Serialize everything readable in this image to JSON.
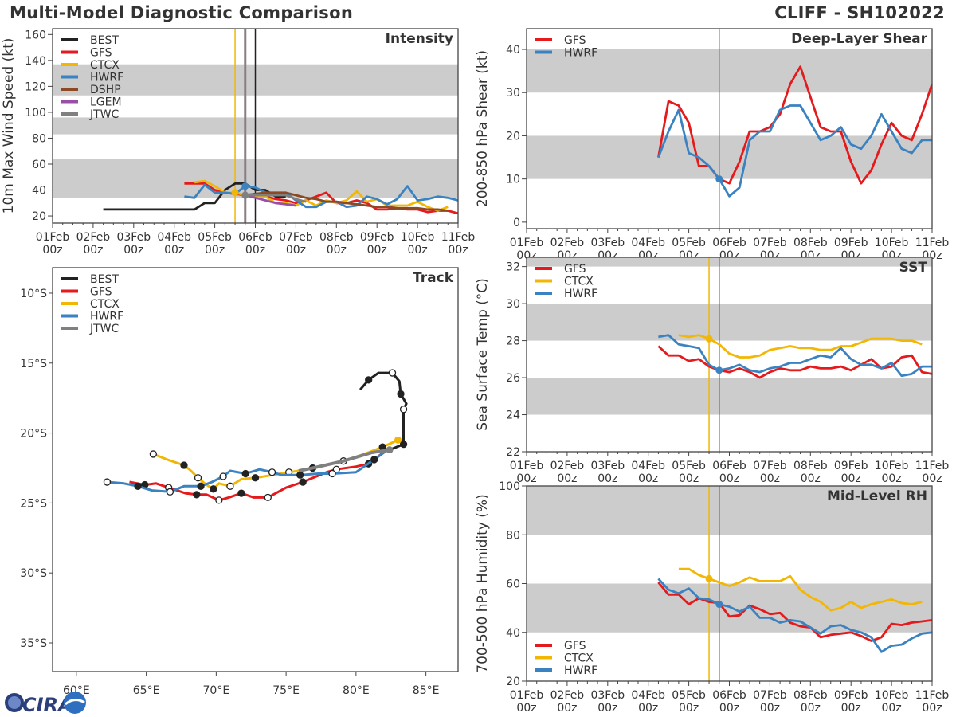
{
  "header": {
    "title": "Multi-Model Diagnostic Comparison",
    "storm": "CLIFF - SH102022"
  },
  "logo": {
    "text": "CIRA"
  },
  "colors": {
    "BEST": "#222222",
    "GFS": "#e41a1c",
    "CTCX": "#f2b705",
    "HWRF": "#3a82c0",
    "DSHP": "#8c4a24",
    "LGEM": "#9b4ea8",
    "JTWC": "#808080",
    "band": "#cccccc"
  },
  "chart_data": [
    {
      "id": "intensity",
      "type": "line",
      "title": "Intensity",
      "ylabel": "10m Max Wind Speed (kt)",
      "ylim": [
        14.5,
        164.5
      ],
      "yticks": [
        20,
        40,
        60,
        80,
        100,
        120,
        140,
        160
      ],
      "xlim": [
        "2022-02-01T00",
        "2022-02-11T00"
      ],
      "xticks": [
        "01Feb\n00z",
        "02Feb\n00z",
        "03Feb\n00z",
        "04Feb\n00z",
        "05Feb\n00z",
        "06Feb\n00z",
        "07Feb\n00z",
        "08Feb\n00z",
        "09Feb\n00z",
        "10Feb\n00z",
        "11Feb\n00z"
      ],
      "bands": [
        [
          34,
          64
        ],
        [
          83,
          96
        ],
        [
          113,
          137
        ]
      ],
      "legend": "top-left",
      "vlines": [
        {
          "time": "2022-02-05T12",
          "color": "#f2b705"
        },
        {
          "time": "2022-02-05T18",
          "color": "#8a7f80"
        },
        {
          "time": "2022-02-06T00",
          "color": "#222222"
        }
      ],
      "interval_hours": 6,
      "series": [
        {
          "name": "BEST",
          "start": "2022-02-02T06",
          "values": [
            25,
            25,
            25,
            25,
            25,
            25,
            25,
            25,
            25,
            25,
            30,
            30,
            40,
            45,
            45,
            40,
            40,
            35,
            35
          ]
        },
        {
          "name": "GFS",
          "start": "2022-02-04T06",
          "values": [
            45,
            45,
            45,
            40,
            38,
            37,
            36,
            37,
            35,
            33,
            32,
            30,
            32,
            35,
            38,
            30,
            30,
            32,
            30,
            25,
            25,
            26,
            25,
            25,
            23,
            24,
            24,
            22
          ]
        },
        {
          "name": "CTCX",
          "start": "2022-02-04T12",
          "values": [
            46,
            47,
            43,
            38,
            38,
            36,
            35,
            35,
            30,
            30,
            28,
            32,
            28,
            32,
            30,
            32,
            39,
            31,
            33,
            28,
            28,
            28,
            31,
            27,
            24,
            27
          ]
        },
        {
          "name": "HWRF",
          "start": "2022-02-04T06",
          "values": [
            35,
            34,
            44,
            38,
            38,
            37,
            43,
            42,
            38,
            36,
            38,
            32,
            27,
            27,
            31,
            31,
            27,
            28,
            35,
            33,
            29,
            33,
            43,
            32,
            33,
            35,
            34,
            32
          ]
        },
        {
          "name": "DSHP",
          "start": "2022-02-05T18",
          "values": [
            36,
            37,
            38,
            38,
            38,
            36,
            34,
            33,
            31,
            31,
            30,
            29,
            28,
            27,
            27,
            26,
            26,
            26,
            25,
            25,
            24
          ]
        },
        {
          "name": "LGEM",
          "start": "2022-02-05T18",
          "values": [
            36,
            34,
            32,
            30,
            29,
            28
          ]
        },
        {
          "name": "JTWC",
          "start": "2022-02-05T18",
          "values": [
            36,
            36,
            36,
            36,
            36,
            33,
            31
          ]
        }
      ],
      "markers": [
        {
          "series": "CTCX",
          "time": "2022-02-05T12",
          "value": 38
        },
        {
          "series": "HWRF",
          "time": "2022-02-05T18",
          "value": 43
        },
        {
          "series": "JTWC",
          "time": "2022-02-05T18",
          "value": 36
        }
      ]
    },
    {
      "id": "shear",
      "type": "line",
      "title": "Deep-Layer Shear",
      "ylabel": "200-850 hPa Shear (kt)",
      "ylim": [
        -1.5,
        44.8
      ],
      "yticks": [
        0,
        10,
        20,
        30,
        40
      ],
      "xlim": [
        "2022-02-01T00",
        "2022-02-11T00"
      ],
      "xticks": [
        "01Feb\n00z",
        "02Feb\n00z",
        "03Feb\n00z",
        "04Feb\n00z",
        "05Feb\n00z",
        "06Feb\n00z",
        "07Feb\n00z",
        "08Feb\n00z",
        "09Feb\n00z",
        "10Feb\n00z",
        "11Feb\n00z"
      ],
      "bands": [
        [
          10,
          20
        ],
        [
          30,
          40
        ]
      ],
      "legend": "top-left",
      "vlines": [
        {
          "time": "2022-02-05T18",
          "color": "#8a6a85"
        }
      ],
      "interval_hours": 6,
      "series": [
        {
          "name": "GFS",
          "start": "2022-02-04T06",
          "values": [
            15,
            28,
            27,
            23,
            13,
            13,
            10,
            9,
            14,
            21,
            21,
            22,
            25,
            32,
            36,
            29,
            22,
            21,
            21,
            14,
            9,
            12,
            18,
            23,
            20,
            19,
            25,
            32
          ]
        },
        {
          "name": "HWRF",
          "start": "2022-02-04T06",
          "values": [
            15,
            21,
            26,
            16,
            15,
            13,
            10,
            6,
            8,
            19,
            21,
            21,
            26,
            27,
            27,
            23,
            19,
            20,
            22,
            18,
            17,
            20,
            25,
            21,
            17,
            16,
            19,
            19
          ]
        }
      ],
      "markers": [
        {
          "series": "HWRF",
          "time": "2022-02-05T18",
          "value": 10
        }
      ]
    },
    {
      "id": "sst",
      "type": "line",
      "title": "SST",
      "ylabel": "Sea Surface Temp (°C)",
      "ylim": [
        22,
        32.5
      ],
      "yticks": [
        22,
        24,
        26,
        28,
        30,
        32
      ],
      "xlim": [
        "2022-02-01T00",
        "2022-02-11T00"
      ],
      "xticks": [
        "01Feb\n00z",
        "02Feb\n00z",
        "03Feb\n00z",
        "04Feb\n00z",
        "05Feb\n00z",
        "06Feb\n00z",
        "07Feb\n00z",
        "08Feb\n00z",
        "09Feb\n00z",
        "10Feb\n00z",
        "11Feb\n00z"
      ],
      "bands": [
        [
          24,
          26
        ],
        [
          28,
          30
        ],
        [
          32,
          32.5
        ]
      ],
      "legend": "top-left",
      "vlines": [
        {
          "time": "2022-02-05T12",
          "color": "#f2b705"
        },
        {
          "time": "2022-02-05T18",
          "color": "#3a6ea8"
        }
      ],
      "interval_hours": 6,
      "series": [
        {
          "name": "GFS",
          "start": "2022-02-04T06",
          "values": [
            27.7,
            27.2,
            27.2,
            26.9,
            27.0,
            26.6,
            26.4,
            26.3,
            26.5,
            26.3,
            26.0,
            26.3,
            26.5,
            26.4,
            26.4,
            26.6,
            26.5,
            26.5,
            26.6,
            26.4,
            26.7,
            27.0,
            26.5,
            26.6,
            27.1,
            27.2,
            26.3,
            26.2
          ]
        },
        {
          "name": "CTCX",
          "start": "2022-02-04T18",
          "values": [
            28.3,
            28.2,
            28.3,
            28.1,
            27.8,
            27.3,
            27.1,
            27.1,
            27.2,
            27.5,
            27.6,
            27.7,
            27.6,
            27.6,
            27.5,
            27.5,
            27.7,
            27.7,
            27.9,
            28.1,
            28.1,
            28.1,
            28.0,
            28.0,
            27.8
          ]
        },
        {
          "name": "HWRF",
          "start": "2022-02-04T06",
          "values": [
            28.2,
            28.3,
            27.8,
            27.7,
            27.6,
            26.7,
            26.4,
            26.5,
            26.7,
            26.4,
            26.3,
            26.5,
            26.6,
            26.8,
            26.8,
            27.0,
            27.2,
            27.1,
            27.6,
            27.0,
            26.7,
            26.7,
            26.5,
            26.8,
            26.1,
            26.2,
            26.6,
            26.6
          ]
        }
      ],
      "markers": [
        {
          "series": "CTCX",
          "time": "2022-02-05T12",
          "value": 28.1
        },
        {
          "series": "HWRF",
          "time": "2022-02-05T18",
          "value": 26.4
        }
      ]
    },
    {
      "id": "rh",
      "type": "line",
      "title": "Mid-Level RH",
      "ylabel": "700-500 hPa Humidity (%)",
      "ylim": [
        20,
        100
      ],
      "yticks": [
        20,
        40,
        60,
        80,
        100
      ],
      "xlim": [
        "2022-02-01T00",
        "2022-02-11T00"
      ],
      "xticks": [
        "01Feb\n00z",
        "02Feb\n00z",
        "03Feb\n00z",
        "04Feb\n00z",
        "05Feb\n00z",
        "06Feb\n00z",
        "07Feb\n00z",
        "08Feb\n00z",
        "09Feb\n00z",
        "10Feb\n00z",
        "11Feb\n00z"
      ],
      "bands": [
        [
          40,
          60
        ],
        [
          80,
          100
        ]
      ],
      "legend": "bottom-left",
      "vlines": [
        {
          "time": "2022-02-05T12",
          "color": "#f2b705"
        },
        {
          "time": "2022-02-05T18",
          "color": "#3a6ea8"
        }
      ],
      "interval_hours": 6,
      "series": [
        {
          "name": "GFS",
          "start": "2022-02-04T06",
          "values": [
            60.5,
            55.5,
            55.5,
            51.5,
            54,
            52.5,
            52,
            46.5,
            47,
            51,
            49.5,
            47.5,
            48,
            44,
            42.5,
            42,
            38,
            39,
            39.5,
            40,
            38.5,
            36.5,
            38,
            43.5,
            43,
            44,
            44.5,
            45
          ]
        },
        {
          "name": "CTCX",
          "start": "2022-02-04T18",
          "values": [
            66,
            66,
            63.5,
            62,
            60.5,
            59,
            60.5,
            62.5,
            61,
            61,
            61,
            63,
            57.5,
            54.5,
            52.5,
            49,
            50,
            52.5,
            50,
            51.5,
            52.5,
            53.5,
            52,
            51.5,
            52.5
          ]
        },
        {
          "name": "HWRF",
          "start": "2022-02-04T06",
          "values": [
            62,
            57.5,
            56,
            58,
            54,
            53.5,
            51.5,
            50.5,
            48.5,
            50.5,
            46,
            46,
            44,
            45,
            44.5,
            42,
            39.5,
            42.5,
            43,
            41,
            40,
            38,
            32,
            34.5,
            35,
            37.5,
            39.5,
            40
          ]
        }
      ],
      "markers": [
        {
          "series": "CTCX",
          "time": "2022-02-05T12",
          "value": 62
        },
        {
          "series": "HWRF",
          "time": "2022-02-05T18",
          "value": 51.5
        }
      ]
    },
    {
      "id": "track",
      "type": "line",
      "title": "Track",
      "xlim": [
        58.3,
        87.3
      ],
      "ylim": [
        -37.05,
        -8.18
      ],
      "xticks": [
        {
          "value": 60,
          "label": "60°E"
        },
        {
          "value": 65,
          "label": "65°E"
        },
        {
          "value": 70,
          "label": "70°E"
        },
        {
          "value": 75,
          "label": "75°E"
        },
        {
          "value": 80,
          "label": "80°E"
        },
        {
          "value": 85,
          "label": "85°E"
        }
      ],
      "yticks": [
        {
          "value": -10,
          "label": "10°S"
        },
        {
          "value": -15,
          "label": "15°S"
        },
        {
          "value": -20,
          "label": "20°S"
        },
        {
          "value": -25,
          "label": "25°S"
        },
        {
          "value": -30,
          "label": "30°S"
        },
        {
          "value": -35,
          "label": "35°S"
        }
      ],
      "legend": "top-left",
      "series": [
        {
          "name": "BEST",
          "lon": [
            80.3,
            80.9,
            81.6,
            82.6,
            83.1,
            83.2,
            83.6,
            83.4,
            83.4,
            83.4,
            82.4
          ],
          "lat": [
            -16.9,
            -16.2,
            -15.7,
            -15.7,
            -16.3,
            -17.2,
            -17.9,
            -18.3,
            -19.1,
            -20.8,
            -21.2
          ]
        },
        {
          "name": "GFS",
          "lon": [
            82.2,
            80.9,
            80.0,
            78.6,
            77.9,
            76.2,
            75.0,
            73.7,
            72.7,
            71.8,
            70.9,
            70.2,
            69.3,
            68.6,
            67.8,
            66.6,
            65.7,
            64.9,
            63.8
          ],
          "lat": [
            -21.2,
            -22.2,
            -22.4,
            -22.6,
            -22.8,
            -23.5,
            -23.9,
            -24.6,
            -24.6,
            -24.3,
            -24.6,
            -24.8,
            -24.4,
            -24.4,
            -24.3,
            -23.9,
            -23.6,
            -23.7,
            -23.5
          ]
        },
        {
          "name": "CTCX",
          "lon": [
            83.0,
            81.9,
            80.6,
            79.1,
            78.3,
            76.9,
            75.9,
            75.2,
            74.0,
            72.8,
            71.8,
            71.0,
            70.2,
            69.8,
            69.3,
            68.7,
            68.2,
            67.7,
            66.5,
            65.5
          ],
          "lat": [
            -20.5,
            -21.0,
            -21.5,
            -22.0,
            -22.2,
            -22.5,
            -22.7,
            -22.8,
            -23.0,
            -23.2,
            -23.3,
            -23.8,
            -23.6,
            -24.0,
            -23.7,
            -23.2,
            -22.7,
            -22.3,
            -21.9,
            -21.5
          ]
        },
        {
          "name": "HWRF",
          "lon": [
            82.4,
            81.3,
            80.0,
            78.3,
            77.3,
            76.0,
            74.7,
            74.0,
            73.1,
            72.1,
            71.0,
            70.5,
            69.7,
            68.9,
            67.7,
            66.7,
            65.4,
            64.4,
            63.4,
            62.2
          ],
          "lat": [
            -21.1,
            -21.9,
            -22.8,
            -22.9,
            -22.9,
            -23.0,
            -23.0,
            -22.8,
            -22.6,
            -22.9,
            -22.7,
            -23.1,
            -23.5,
            -23.8,
            -23.8,
            -24.2,
            -24.1,
            -23.8,
            -23.6,
            -23.5
          ]
        },
        {
          "name": "JTWC",
          "lon": [
            82.4,
            81.1,
            79.1,
            76.9,
            75.9
          ],
          "lat": [
            -21.2,
            -21.4,
            -22.0,
            -22.5,
            -22.7
          ]
        }
      ]
    }
  ]
}
